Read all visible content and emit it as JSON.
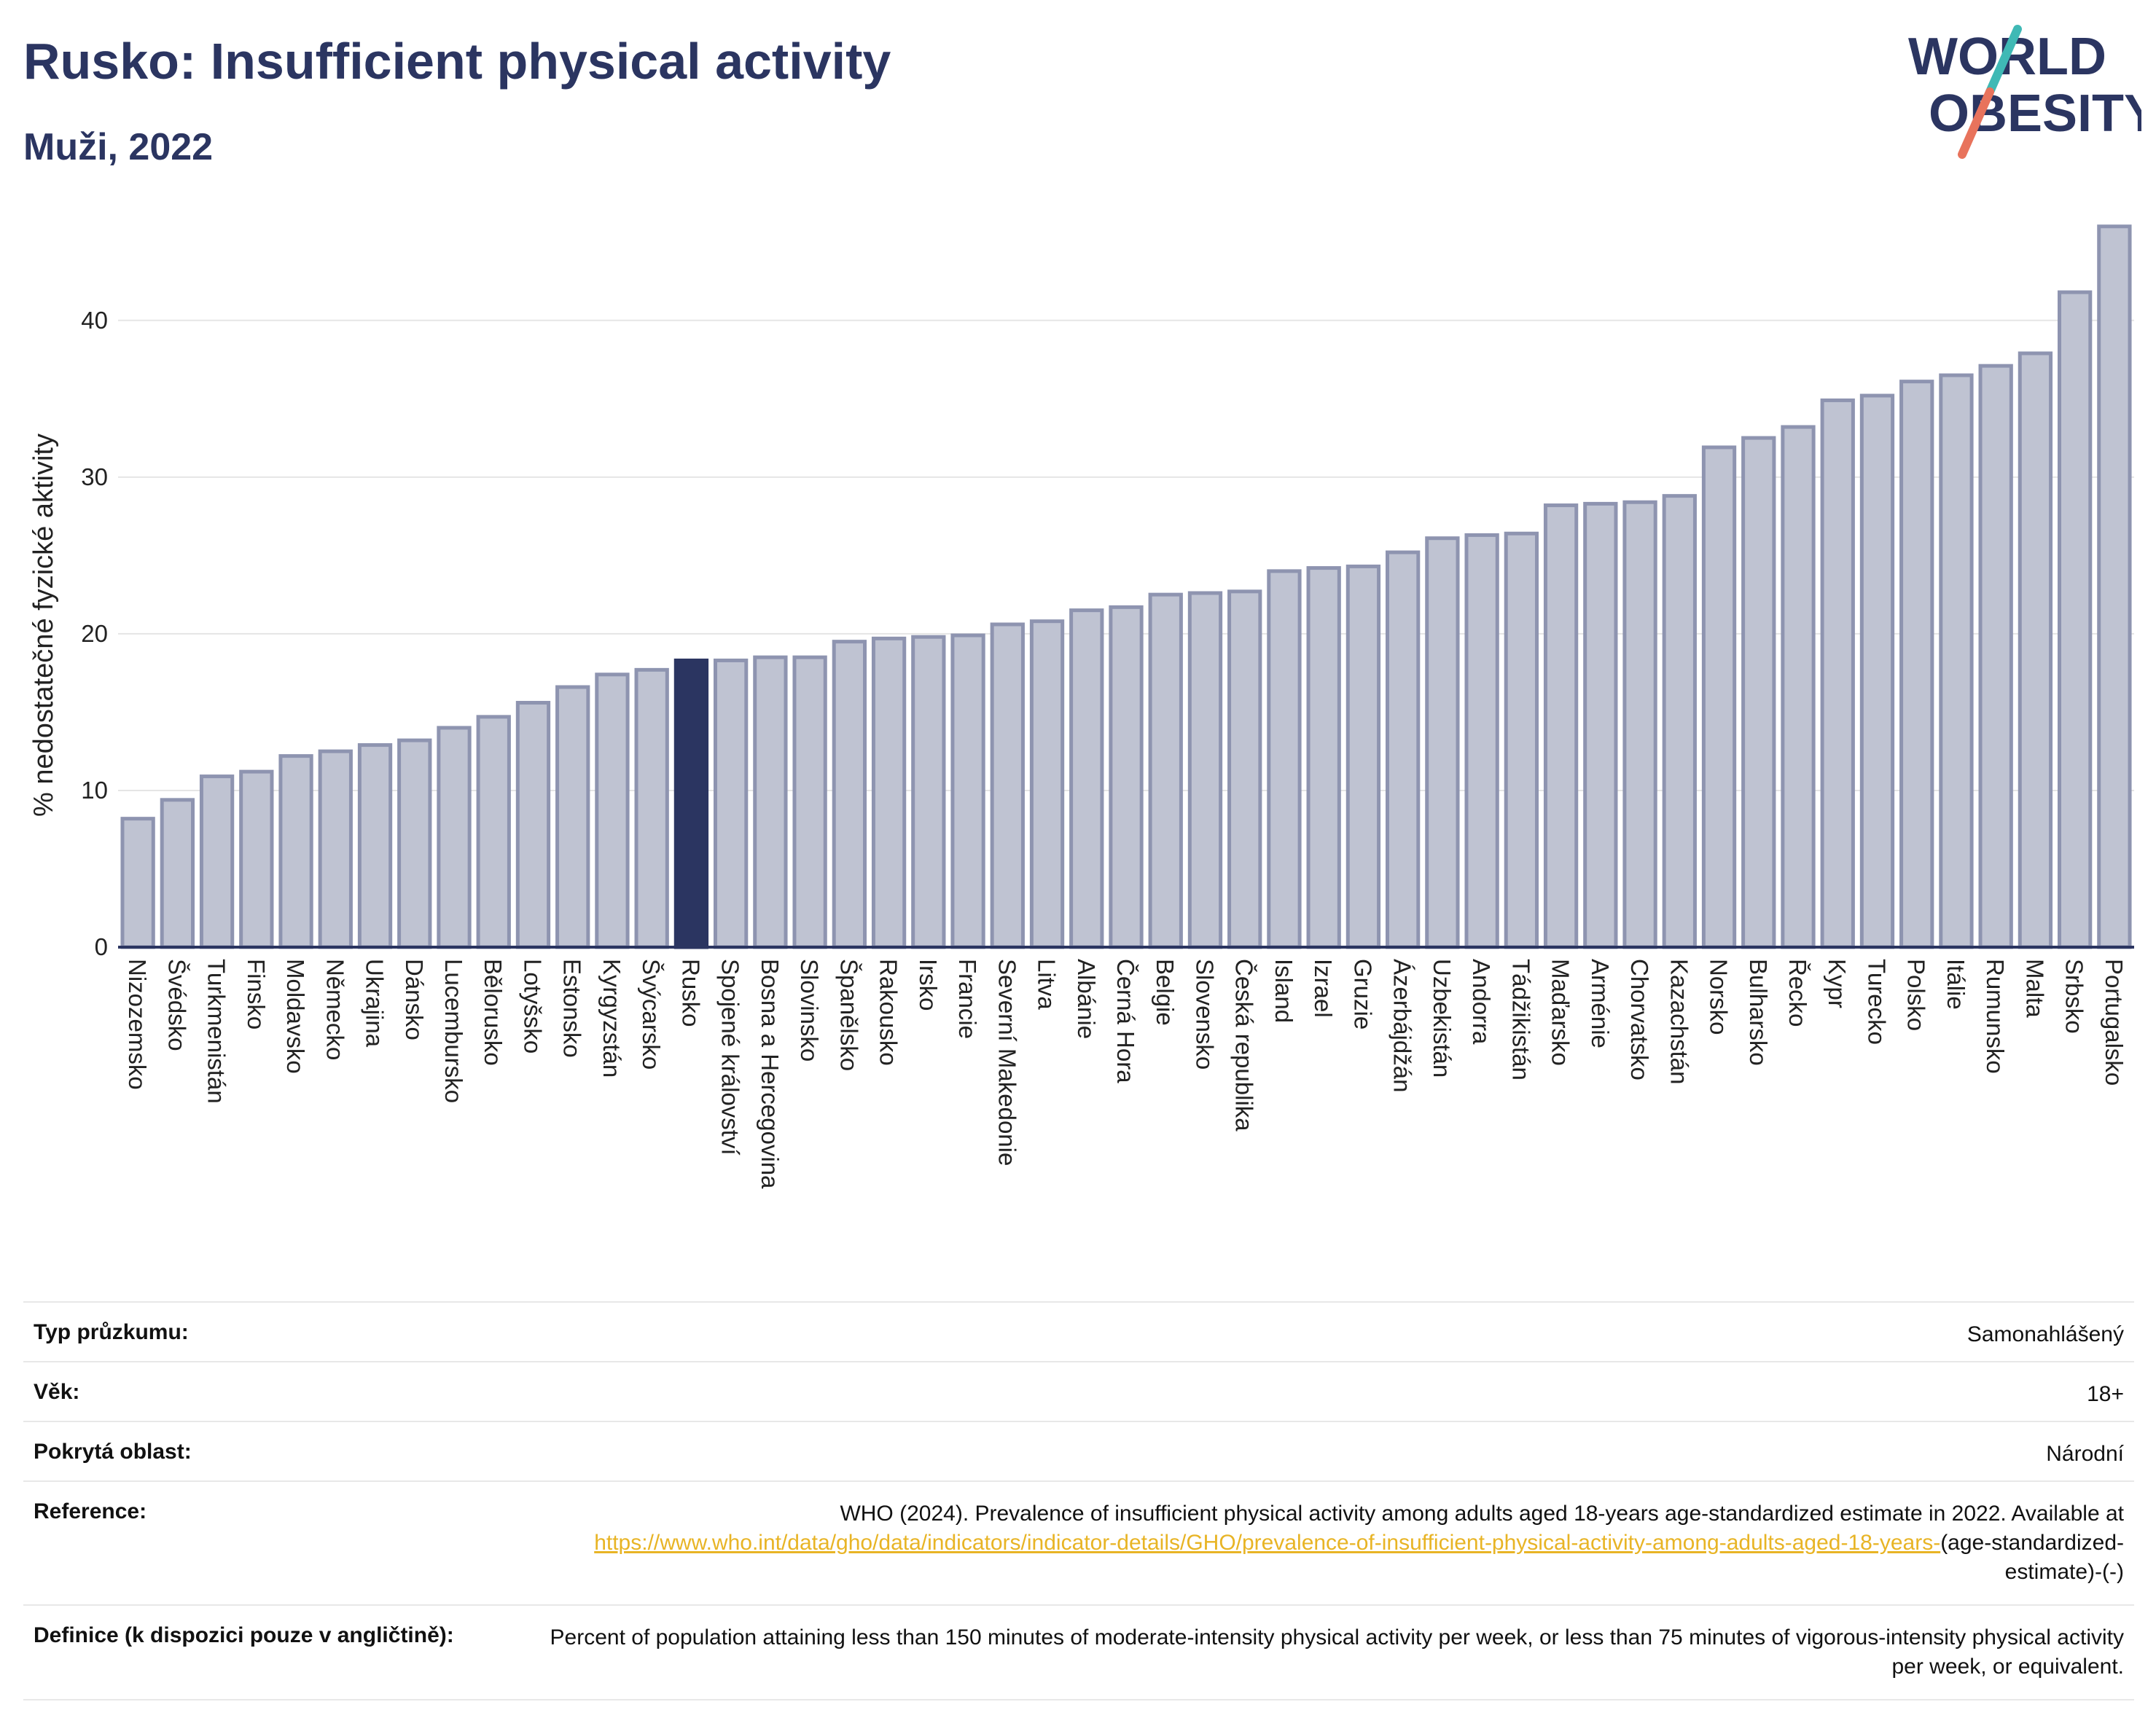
{
  "header": {
    "title": "Rusko: Insufficient physical activity",
    "subtitle": "Muži, 2022",
    "logo_line1": "WORLD",
    "logo_line2": "OBESITY"
  },
  "colors": {
    "bar": "#bfc3d2",
    "bar_border": "#8e94b0",
    "highlight": "#2b3561",
    "axis": "#2b3561",
    "grid": "#e5e5e5",
    "logo_teal": "#3fb9b5",
    "logo_coral": "#e8735c"
  },
  "chart_data": {
    "type": "bar",
    "ylabel": "% nedostatečné fyzické aktivity",
    "ylim": [
      0,
      46.5
    ],
    "yticks": [
      0,
      10,
      20,
      30,
      40
    ],
    "grid": true,
    "highlight": "Rusko",
    "categories": [
      "Nizozemsko",
      "Švédsko",
      "Turkmenistán",
      "Finsko",
      "Moldavsko",
      "Německo",
      "Ukrajina",
      "Dánsko",
      "Lucembursko",
      "Bělorusko",
      "Lotyšsko",
      "Estonsko",
      "Kyrgyzstán",
      "Švýcarsko",
      "Rusko",
      "Spojené království",
      "Bosna a Hercegovina",
      "Slovinsko",
      "Španělsko",
      "Rakousko",
      "Irsko",
      "Francie",
      "Severní Makedonie",
      "Litva",
      "Albánie",
      "Černá Hora",
      "Belgie",
      "Slovensko",
      "Česká republika",
      "Island",
      "Izrael",
      "Gruzie",
      "Ázerbájdžán",
      "Uzbekistán",
      "Andorra",
      "Tádžikistán",
      "Maďarsko",
      "Arménie",
      "Chorvatsko",
      "Kazachstán",
      "Norsko",
      "Bulharsko",
      "Řecko",
      "Kypr",
      "Turecko",
      "Polsko",
      "Itálie",
      "Rumunsko",
      "Malta",
      "Srbsko",
      "Portugalsko"
    ],
    "values": [
      8.2,
      9.4,
      10.9,
      11.2,
      12.2,
      12.5,
      12.9,
      13.2,
      14.0,
      14.7,
      15.6,
      16.6,
      17.4,
      17.7,
      18.3,
      18.3,
      18.5,
      18.5,
      19.5,
      19.7,
      19.8,
      19.9,
      20.6,
      20.8,
      21.5,
      21.7,
      22.5,
      22.6,
      22.7,
      24.0,
      24.2,
      24.3,
      25.2,
      26.1,
      26.3,
      26.4,
      28.2,
      28.3,
      28.4,
      28.8,
      31.9,
      32.5,
      33.2,
      34.9,
      35.2,
      36.1,
      36.5,
      37.1,
      37.9,
      41.8,
      46.0
    ]
  },
  "info": {
    "survey_label": "Typ průzkumu:",
    "survey_value": "Samonahlášený",
    "age_label": "Věk:",
    "age_value": "18+",
    "area_label": "Pokrytá oblast:",
    "area_value": "Národní",
    "reference_label": "Reference:",
    "reference_text": "WHO (2024). Prevalence of insufficient physical activity among adults aged 18-years age-standardized estimate in 2022. Available at",
    "reference_link": "https://www.who.int/data/gho/data/indicators/indicator-details/GHO/prevalence-of-insufficient-physical-activity-among-adults-aged-18-years-",
    "reference_suffix": "(age-standardized-estimate)-(-)",
    "definition_label": "Definice (k dispozici pouze v angličtině):",
    "definition_text": "Percent of population attaining less than 150 minutes of moderate-intensity physical activity per week, or less than 75 minutes of vigorous-intensity physical activity per week, or equivalent."
  }
}
